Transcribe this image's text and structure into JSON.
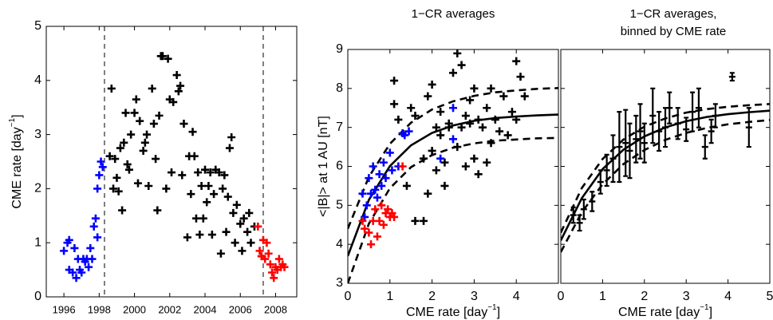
{
  "chart_data": [
    {
      "type": "scatter",
      "ylabel": "CME rate [day",
      "ylabel_sup": "−1",
      "ylabel_end": "]",
      "xlim": [
        1995,
        2009.2
      ],
      "ylim": [
        0,
        5
      ],
      "xticks": [
        1996,
        1998,
        2000,
        2002,
        2004,
        2006,
        2008
      ],
      "yticks": [
        0,
        1,
        2,
        3,
        4,
        5
      ],
      "vlines": [
        1998.3,
        2007.3
      ],
      "series": [
        {
          "color": "#0000ff",
          "x": [
            1996.0,
            1996.2,
            1996.3,
            1996.3,
            1996.5,
            1996.6,
            1996.7,
            1996.8,
            1996.9,
            1997.0,
            1997.1,
            1997.2,
            1997.3,
            1997.4,
            1997.5,
            1997.6,
            1997.7,
            1997.8,
            1997.9,
            1997.9,
            1998.0,
            1998.1,
            1998.2
          ],
          "values": [
            0.85,
            1.0,
            1.05,
            0.5,
            0.45,
            0.9,
            0.35,
            0.7,
            0.5,
            0.45,
            0.7,
            0.65,
            0.7,
            0.55,
            0.9,
            0.7,
            1.3,
            1.45,
            1.1,
            2.0,
            2.25,
            2.5,
            2.4
          ]
        },
        {
          "color": "#000000",
          "x": [
            1998.6,
            1998.7,
            1998.8,
            1998.9,
            1999.0,
            1999.1,
            1999.2,
            1999.3,
            1999.4,
            1999.5,
            1999.6,
            1999.7,
            1999.8,
            2000.0,
            2000.1,
            2000.2,
            2000.3,
            2000.5,
            2000.6,
            2000.7,
            2000.8,
            2001.0,
            2001.1,
            2001.2,
            2001.3,
            2001.4,
            2001.5,
            2001.6,
            2001.8,
            2001.9,
            2002.0,
            2002.1,
            2002.2,
            2002.4,
            2002.5,
            2002.6,
            2002.7,
            2002.8,
            2003.0,
            2003.1,
            2003.2,
            2003.3,
            2003.4,
            2003.5,
            2003.6,
            2003.7,
            2003.8,
            2003.9,
            2004.0,
            2004.1,
            2004.2,
            2004.3,
            2004.4,
            2004.5,
            2004.6,
            2004.8,
            2004.9,
            2005.0,
            2005.1,
            2005.2,
            2005.3,
            2005.4,
            2005.5,
            2005.6,
            2005.7,
            2005.8,
            2006.0,
            2006.1,
            2006.2,
            2006.4,
            2006.5,
            2006.6,
            2006.8
          ],
          "values": [
            2.6,
            3.85,
            2.0,
            2.55,
            2.2,
            1.95,
            2.75,
            1.6,
            2.85,
            3.4,
            2.45,
            2.35,
            3.0,
            3.4,
            3.65,
            2.1,
            3.25,
            2.7,
            2.85,
            3.0,
            2.05,
            3.85,
            3.2,
            2.55,
            1.6,
            3.35,
            4.45,
            4.45,
            2.0,
            4.4,
            3.65,
            2.3,
            3.6,
            4.1,
            3.8,
            3.9,
            2.25,
            3.2,
            1.1,
            2.6,
            1.9,
            3.05,
            2.6,
            1.45,
            2.3,
            1.15,
            2.05,
            1.45,
            2.35,
            1.75,
            2.05,
            2.3,
            1.15,
            1.9,
            2.35,
            2.3,
            0.8,
            2.0,
            2.25,
            1.2,
            1.85,
            2.75,
            2.95,
            1.55,
            1.0,
            1.7,
            1.35,
            0.85,
            1.45,
            1.2,
            1.55,
            1.0,
            1.3
          ]
        },
        {
          "color": "#ff0000",
          "x": [
            2007.0,
            2007.1,
            2007.2,
            2007.3,
            2007.4,
            2007.5,
            2007.6,
            2007.7,
            2007.8,
            2007.9,
            2008.0,
            2008.1,
            2008.2,
            2008.3,
            2008.4,
            2008.5
          ],
          "values": [
            1.3,
            0.85,
            0.75,
            1.05,
            0.7,
            1.0,
            0.8,
            0.6,
            0.45,
            0.35,
            0.55,
            0.5,
            0.7,
            0.55,
            0.6,
            0.55
          ]
        }
      ]
    },
    {
      "type": "scatter",
      "title": "1−CR averages",
      "ylabel": "<|B|> at 1 AU [nT]",
      "xlabel": "CME rate [day",
      "xlabel_sup": "−1",
      "xlabel_end": "]",
      "xlim": [
        0,
        5
      ],
      "ylim": [
        3,
        9
      ],
      "xticks": [
        0,
        1,
        2,
        3,
        4
      ],
      "yticks": [
        3,
        4,
        5,
        6,
        7,
        8,
        9
      ],
      "series": [
        {
          "color": "#000000",
          "x": [
            1.1,
            1.1,
            1.2,
            1.4,
            1.5,
            1.6,
            1.6,
            1.8,
            1.8,
            1.9,
            1.9,
            2.0,
            2.0,
            2.1,
            2.1,
            2.2,
            2.2,
            2.3,
            2.3,
            2.4,
            2.5,
            2.6,
            2.6,
            2.7,
            2.7,
            2.8,
            2.8,
            2.9,
            3.0,
            3.0,
            3.1,
            3.1,
            3.2,
            3.3,
            3.4,
            3.4,
            3.5,
            3.6,
            3.7,
            3.8,
            3.9,
            4.0,
            4.1,
            4.2,
            4.0,
            2.9,
            3.3,
            2.4
          ],
          "values": [
            8.2,
            7.6,
            7.2,
            5.5,
            7.5,
            7.3,
            4.6,
            4.6,
            6.2,
            7.8,
            5.3,
            8.1,
            6.4,
            5.9,
            7.0,
            6.8,
            7.4,
            6.1,
            5.5,
            7.1,
            8.4,
            8.9,
            6.5,
            8.6,
            7.0,
            6.0,
            7.3,
            7.7,
            6.2,
            8.0,
            7.2,
            5.8,
            7.0,
            7.5,
            6.6,
            8.0,
            7.2,
            6.9,
            7.8,
            6.8,
            7.4,
            8.7,
            8.3,
            7.8,
            7.2,
            7.1,
            6.1,
            7.0
          ]
        },
        {
          "color": "#0000ff",
          "x": [
            0.35,
            0.4,
            0.45,
            0.5,
            0.55,
            0.6,
            0.65,
            0.7,
            0.75,
            0.8,
            0.85,
            0.9,
            1.0,
            1.05,
            1.2,
            1.3,
            1.35,
            1.45,
            2.2,
            2.5,
            2.5
          ],
          "values": [
            5.3,
            4.7,
            5.0,
            5.7,
            5.3,
            6.0,
            5.4,
            5.2,
            5.8,
            5.5,
            6.1,
            5.7,
            6.35,
            5.9,
            6.0,
            6.85,
            6.8,
            6.9,
            6.2,
            6.7,
            7.5
          ]
        },
        {
          "color": "#ff0000",
          "x": [
            0.35,
            0.4,
            0.5,
            0.55,
            0.6,
            0.65,
            0.7,
            0.75,
            0.8,
            0.85,
            0.9,
            1.0,
            1.05,
            1.1,
            1.3,
            0.95
          ],
          "values": [
            4.6,
            4.4,
            4.3,
            4.0,
            4.6,
            4.9,
            4.2,
            4.6,
            5.0,
            4.5,
            4.8,
            4.7,
            4.8,
            4.7,
            6.0,
            4.9
          ]
        }
      ],
      "lines": [
        {
          "color": "#000000",
          "dashed": false,
          "x": [
            0,
            0.5,
            1,
            1.5,
            2,
            2.5,
            3,
            3.5,
            4,
            4.5,
            5
          ],
          "values": [
            3.7,
            5.14,
            6.01,
            6.54,
            6.86,
            7.05,
            7.17,
            7.24,
            7.28,
            7.31,
            7.33
          ]
        },
        {
          "color": "#000000",
          "dashed": true,
          "x": [
            0,
            0.5,
            1,
            1.5,
            2,
            2.5,
            3,
            3.5,
            4,
            4.5,
            5
          ],
          "values": [
            4.4,
            5.73,
            6.58,
            7.12,
            7.46,
            7.67,
            7.81,
            7.9,
            7.95,
            7.99,
            8.01
          ]
        },
        {
          "color": "#000000",
          "dashed": true,
          "x": [
            0,
            0.5,
            1,
            1.5,
            2,
            2.5,
            3,
            3.5,
            4,
            4.5,
            5
          ],
          "values": [
            3.0,
            4.53,
            5.44,
            5.98,
            6.29,
            6.48,
            6.59,
            6.66,
            6.69,
            6.72,
            6.73
          ]
        }
      ]
    },
    {
      "type": "errorbar",
      "title": [
        "1−CR averages,",
        "binned by CME rate"
      ],
      "xlabel": "CME rate [day",
      "xlabel_sup": "−1",
      "xlabel_end": "]",
      "xlim": [
        0,
        5
      ],
      "ylim": [
        3,
        9
      ],
      "xticks": [
        0,
        1,
        2,
        3,
        4,
        5
      ],
      "yticks": [
        3,
        4,
        5,
        6,
        7,
        8,
        9
      ],
      "ytick_labels": false,
      "series": [
        {
          "color": "#000000",
          "x": [
            0.3,
            0.45,
            0.55,
            0.75,
            0.95,
            1.1,
            1.25,
            1.4,
            1.55,
            1.65,
            1.8,
            1.9,
            2.0,
            2.2,
            2.35,
            2.5,
            2.6,
            2.8,
            3.0,
            3.15,
            3.3,
            3.45,
            3.6,
            3.7,
            4.1,
            4.5
          ],
          "values": [
            4.75,
            4.55,
            4.9,
            5.1,
            5.6,
            5.9,
            6.2,
            6.5,
            6.6,
            6.4,
            6.7,
            6.9,
            6.6,
            7.3,
            6.9,
            7.0,
            7.5,
            7.1,
            6.95,
            7.4,
            7.5,
            6.5,
            6.9,
            7.3,
            8.3,
            7.0
          ],
          "errors": [
            0.2,
            0.2,
            0.25,
            0.25,
            0.3,
            0.4,
            0.6,
            0.9,
            0.85,
            0.7,
            0.6,
            0.7,
            0.5,
            0.7,
            0.5,
            0.5,
            0.4,
            0.4,
            0.3,
            0.5,
            0.5,
            0.3,
            0.3,
            0.3,
            0.1,
            0.5
          ]
        }
      ],
      "lines": [
        {
          "color": "#000000",
          "dashed": false,
          "x": [
            0,
            0.5,
            1,
            1.5,
            2,
            2.5,
            3,
            3.5,
            4,
            4.5,
            5
          ],
          "values": [
            4.1,
            5.18,
            5.93,
            6.43,
            6.77,
            7.0,
            7.16,
            7.27,
            7.34,
            7.39,
            7.43
          ]
        },
        {
          "color": "#000000",
          "dashed": true,
          "x": [
            0,
            0.5,
            1,
            1.5,
            2,
            2.5,
            3,
            3.5,
            4,
            4.5,
            5
          ],
          "values": [
            4.3,
            5.44,
            6.19,
            6.69,
            7.02,
            7.23,
            7.38,
            7.47,
            7.53,
            7.57,
            7.6
          ]
        },
        {
          "color": "#000000",
          "dashed": true,
          "x": [
            0,
            0.5,
            1,
            1.5,
            2,
            2.5,
            3,
            3.5,
            4,
            4.5,
            5
          ],
          "values": [
            3.8,
            4.82,
            5.54,
            6.06,
            6.42,
            6.68,
            6.86,
            6.99,
            7.08,
            7.14,
            7.19
          ]
        }
      ]
    }
  ]
}
